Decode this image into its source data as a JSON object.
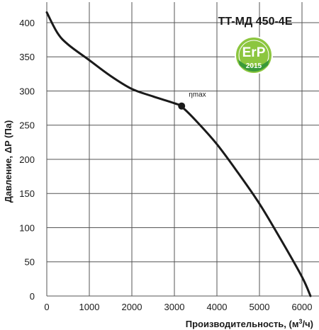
{
  "chart_data": {
    "type": "line",
    "title": "TT-МД 450-4E",
    "xlabel": "Производительность, (м³/ч)",
    "xlabel_main": "Производительность, (м",
    "xlabel_sup": "3",
    "xlabel_end": "/ч)",
    "ylabel": "Давление, ΔP (Па)",
    "xlim": [
      0,
      6400
    ],
    "ylim": [
      0,
      430
    ],
    "x_ticks": [
      0,
      1000,
      2000,
      3000,
      4000,
      5000,
      6000
    ],
    "y_ticks": [
      0,
      50,
      100,
      150,
      200,
      250,
      300,
      350,
      400
    ],
    "grid": true,
    "series": [
      {
        "x": [
          0,
          250,
          500,
          1000,
          1500,
          2000,
          2500,
          3000,
          3170,
          3500,
          4000,
          4500,
          5000,
          5500,
          6000,
          6200
        ],
        "y": [
          415,
          385,
          368,
          345,
          322,
          303,
          292,
          282,
          277,
          257,
          222,
          180,
          135,
          83,
          28,
          0
        ]
      }
    ],
    "annotations": [
      {
        "label": "ηmax",
        "x": 3170,
        "y": 278
      }
    ]
  },
  "badge": {
    "text": "ErP",
    "year": "2015",
    "colors": {
      "outer": "#8cc63f",
      "inner": "#3a9a3a",
      "ring": "#ffffff"
    }
  },
  "colors": {
    "curve": "#1a1a1a",
    "grid": "#555555"
  }
}
